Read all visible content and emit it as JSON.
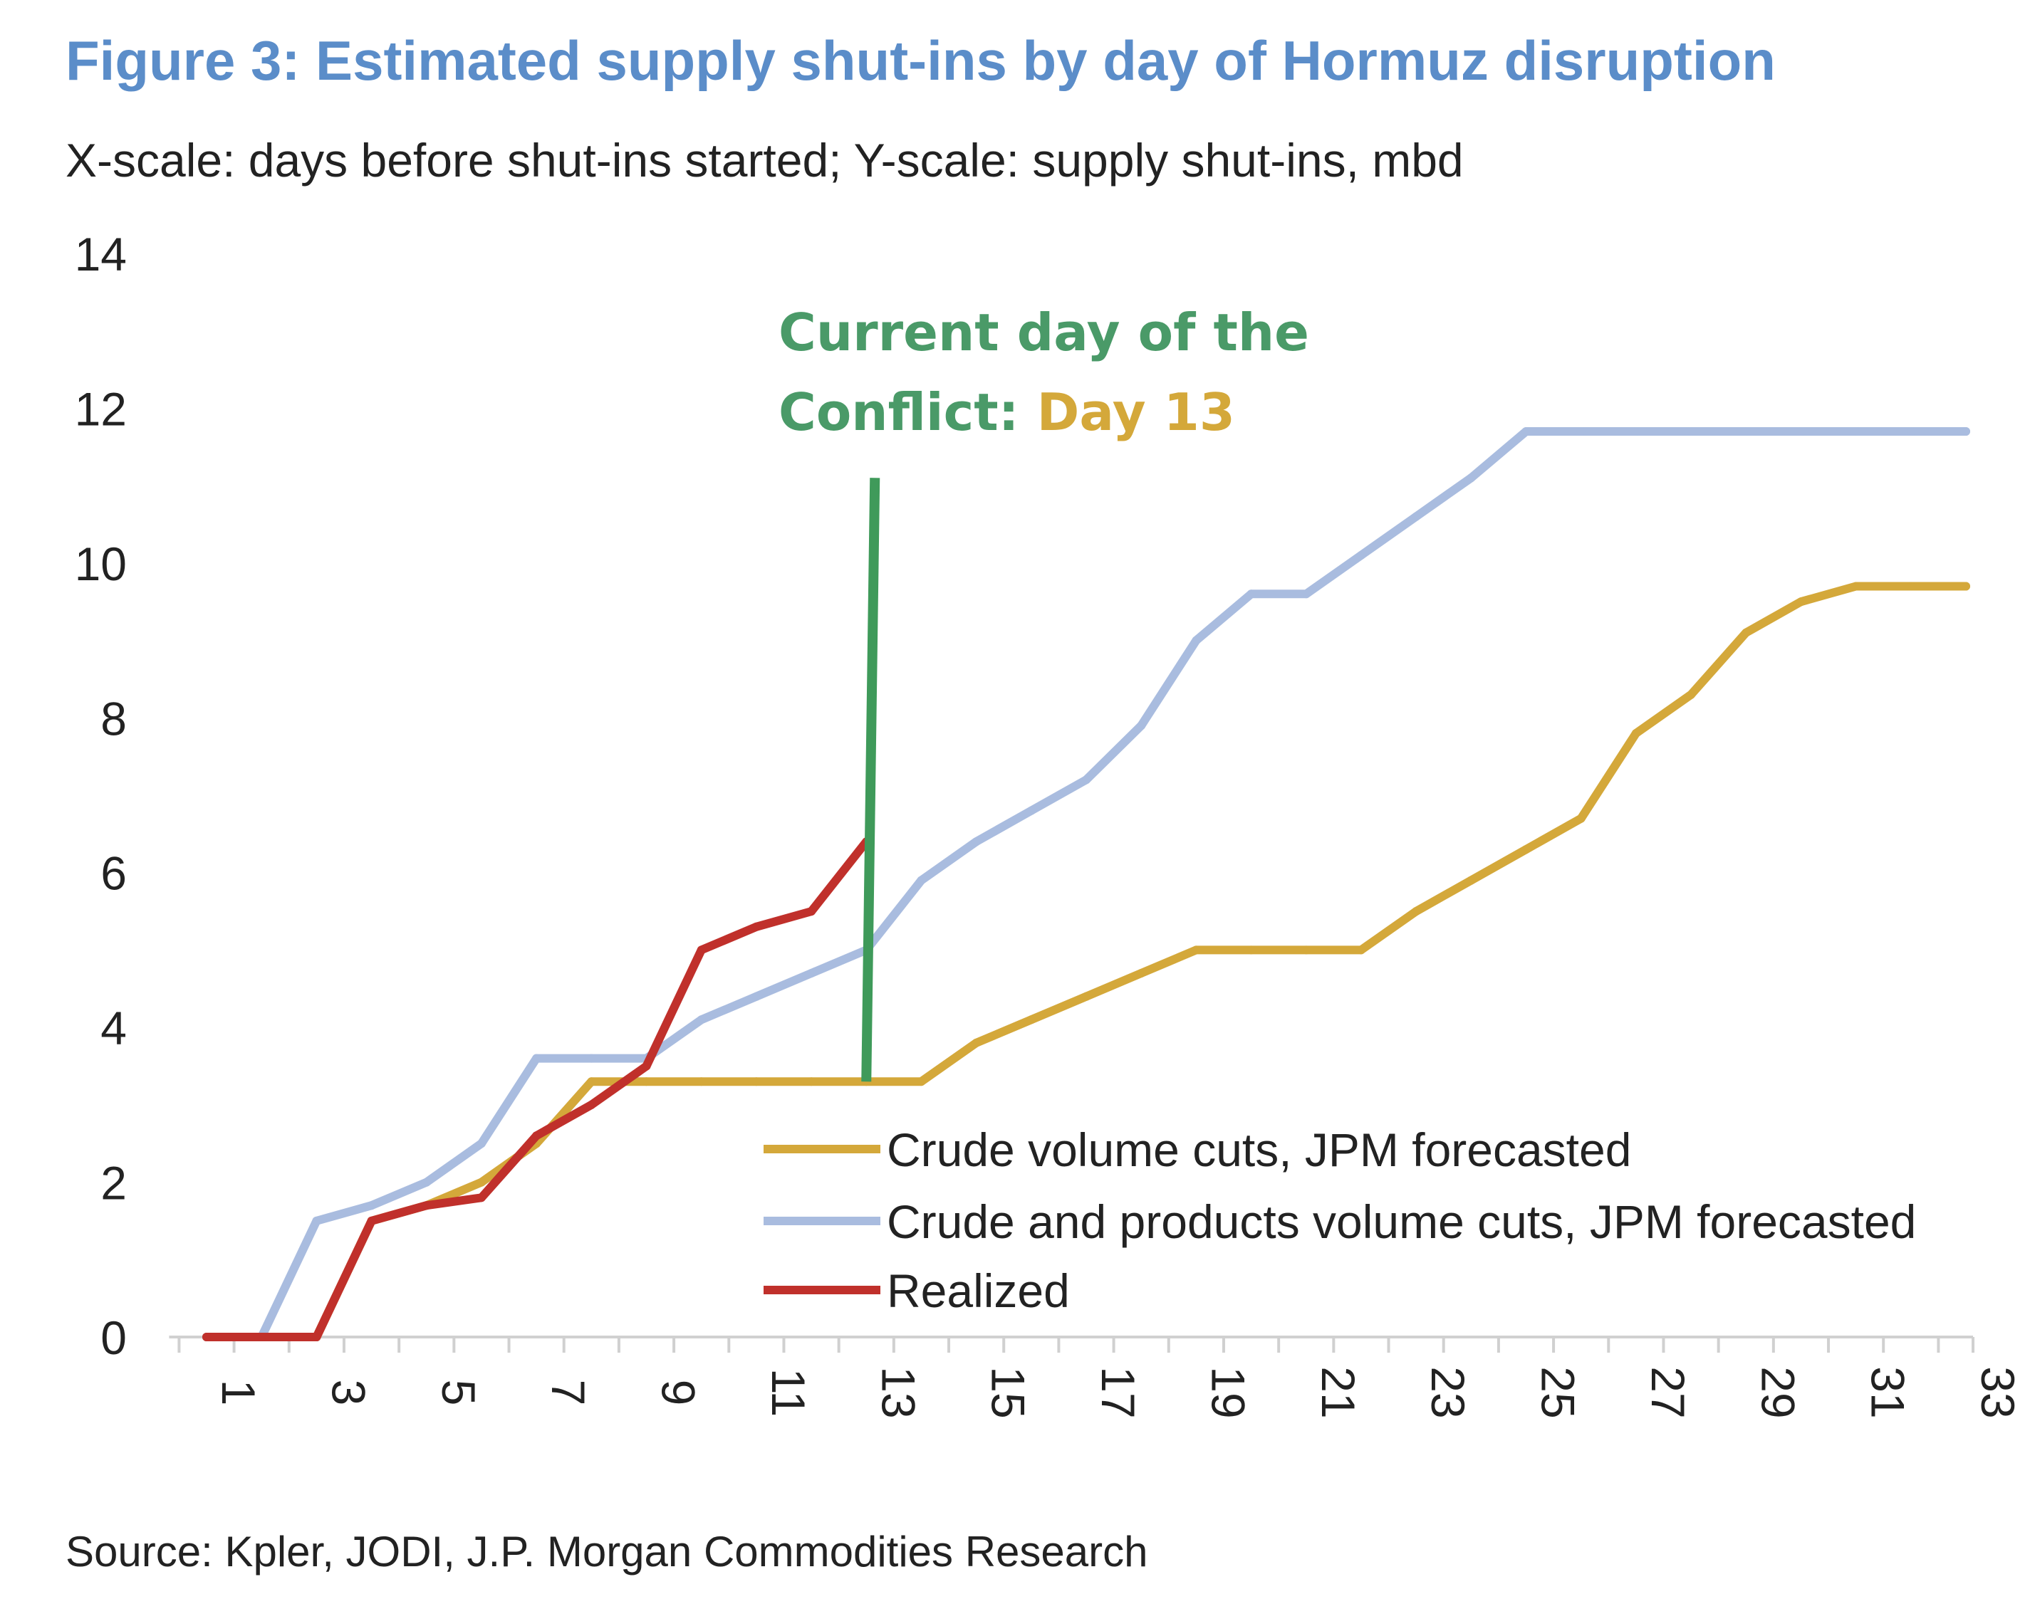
{
  "colors": {
    "title": "#5b8dc9",
    "text": "#222222",
    "axis": "#d0d0d0",
    "crude": "#d4a83a",
    "crude_products": "#a9bcdf",
    "realized": "#c0302b",
    "current_day_line": "#3f9a5a",
    "annotation_green": "#4a9a68",
    "annotation_gold": "#d4a83a"
  },
  "chart_data": {
    "type": "line",
    "title": "Figure 3: Estimated supply shut-ins by day of Hormuz disruption",
    "subtitle": "X-scale: days before shut-ins started; Y-scale: supply shut-ins, mbd",
    "xlabel": "",
    "ylabel": "",
    "x": [
      1,
      2,
      3,
      4,
      5,
      6,
      7,
      8,
      9,
      10,
      11,
      12,
      13,
      14,
      15,
      16,
      17,
      18,
      19,
      20,
      21,
      22,
      23,
      24,
      25,
      26,
      27,
      28,
      29,
      30,
      31,
      32,
      33
    ],
    "x_tick_labels": [
      "1",
      "3",
      "5",
      "7",
      "9",
      "11",
      "13",
      "15",
      "17",
      "19",
      "21",
      "23",
      "25",
      "27",
      "29",
      "31",
      "33"
    ],
    "x_tick_values": [
      1,
      3,
      5,
      7,
      9,
      11,
      13,
      15,
      17,
      19,
      21,
      23,
      25,
      27,
      29,
      31,
      33
    ],
    "ylim": [
      0,
      14
    ],
    "y_ticks": [
      0,
      2,
      4,
      6,
      8,
      10,
      12,
      14
    ],
    "grid": false,
    "legend_position": "bottom-right",
    "series": [
      {
        "name": "Crude volume cuts, JPM forecasted",
        "color_key": "crude",
        "x": [
          1,
          2,
          3,
          4,
          5,
          6,
          7,
          8,
          9,
          10,
          11,
          12,
          13,
          14,
          15,
          16,
          17,
          18,
          19,
          20,
          21,
          22,
          23,
          24,
          25,
          26,
          27,
          28,
          29,
          30,
          31,
          32,
          33
        ],
        "values": [
          0,
          0,
          0,
          1.5,
          1.7,
          2.0,
          2.5,
          3.3,
          3.3,
          3.3,
          3.3,
          3.3,
          3.3,
          3.3,
          3.8,
          4.1,
          4.4,
          4.7,
          5.0,
          5.0,
          5.0,
          5.0,
          5.5,
          5.9,
          6.3,
          6.7,
          7.8,
          8.3,
          9.1,
          9.5,
          9.7,
          9.7,
          9.7
        ]
      },
      {
        "name": "Crude and products volume cuts, JPM forecasted",
        "color_key": "crude_products",
        "x": [
          1,
          2,
          3,
          4,
          5,
          6,
          7,
          8,
          9,
          10,
          11,
          12,
          13,
          14,
          15,
          16,
          17,
          18,
          19,
          20,
          21,
          22,
          23,
          24,
          25,
          26,
          27,
          28,
          29,
          30,
          31,
          32,
          33
        ],
        "values": [
          0,
          0,
          1.5,
          1.7,
          2.0,
          2.5,
          3.6,
          3.6,
          3.6,
          4.1,
          4.4,
          4.7,
          5.0,
          5.9,
          6.4,
          6.8,
          7.2,
          7.9,
          9.0,
          9.6,
          9.6,
          10.1,
          10.6,
          11.1,
          11.7,
          11.7,
          11.7,
          11.7,
          11.7,
          11.7,
          11.7,
          11.7,
          11.7
        ]
      },
      {
        "name": "Realized",
        "color_key": "realized",
        "x": [
          1,
          2,
          3,
          4,
          5,
          6,
          7,
          8,
          9,
          10,
          11,
          12,
          13
        ],
        "values": [
          0,
          0,
          0,
          1.5,
          1.7,
          1.8,
          2.6,
          3.0,
          3.5,
          5.0,
          5.3,
          5.5,
          6.4
        ]
      }
    ],
    "annotations": [
      {
        "name": "current-day-line",
        "x": 13,
        "y_start": 3.3,
        "y_end": 11.1,
        "label_line1": "Current day of the",
        "label_line2_prefix": "Conflict: ",
        "label_line2_highlight": "Day 13"
      }
    ]
  },
  "source": "Source: Kpler, JODI, J.P. Morgan Commodities Research"
}
